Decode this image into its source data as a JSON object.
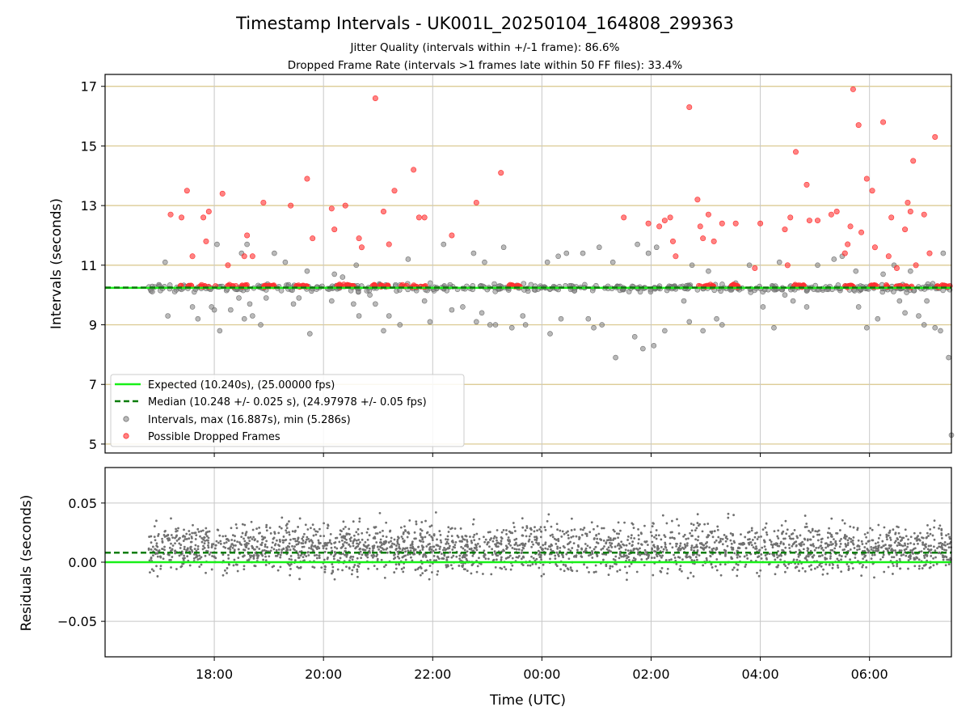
{
  "chart_data": [
    {
      "type": "scatter",
      "title": "Timestamp Intervals - UK001L_20250104_164808_299363",
      "subtitle_lines": [
        "Jitter Quality (intervals within +/-1 frame): 86.6%",
        "Dropped Frame Rate (intervals >1 frames late within 50 FF files): 33.4%"
      ],
      "ylabel": "Intervals (seconds)",
      "ylim": [
        4.7,
        17.4
      ],
      "yticks": [
        "5",
        "7",
        "9",
        "11",
        "13",
        "15",
        "17"
      ],
      "ytick_values": [
        5,
        7,
        9,
        11,
        13,
        15,
        17
      ],
      "x_time_range_hours": [
        16.0,
        31.5
      ],
      "x_data_start_hours": 16.8,
      "grid": "on",
      "horizontal_grid_color": "#d8c68a",
      "legend_placement": "lower-left",
      "legend": [
        {
          "label": "Expected (10.240s), (25.00000 fps)",
          "kind": "solid-line",
          "color": "#18f018"
        },
        {
          "label": "Median (10.248 +/- 0.025 s), (24.97978 +/- 0.05 fps)",
          "kind": "dashed-line",
          "color": "#0a7d0a"
        },
        {
          "label": "Intervals, max (16.887s), min (5.286s)",
          "kind": "marker",
          "color": "#808080"
        },
        {
          "label": "Possible Dropped Frames",
          "kind": "marker",
          "color": "#ff3030"
        }
      ],
      "series": [
        {
          "name": "Expected (10.240s), (25.00000 fps)",
          "type": "hline",
          "y": 10.24,
          "color": "#18f018"
        },
        {
          "name": "Median (10.248 +/- 0.025 s), (24.97978 +/- 0.05 fps)",
          "type": "hline",
          "y": 10.248,
          "color": "#0a7d0a",
          "style": "dashed"
        },
        {
          "name": "Intervals, max (16.887s), min (5.286s)",
          "color": "#808080",
          "band": {
            "center": 10.24,
            "halfwidth": 0.12,
            "count": 420
          },
          "outliers": [
            [
              17.1,
              11.1
            ],
            [
              17.15,
              9.3
            ],
            [
              17.6,
              9.6
            ],
            [
              17.7,
              9.2
            ],
            [
              17.95,
              9.6
            ],
            [
              18.0,
              9.5
            ],
            [
              18.05,
              11.7
            ],
            [
              18.1,
              8.8
            ],
            [
              18.3,
              9.5
            ],
            [
              18.45,
              9.9
            ],
            [
              18.5,
              11.4
            ],
            [
              18.55,
              9.2
            ],
            [
              18.6,
              11.7
            ],
            [
              18.65,
              9.7
            ],
            [
              18.7,
              9.3
            ],
            [
              18.85,
              9.0
            ],
            [
              18.95,
              9.9
            ],
            [
              19.1,
              11.4
            ],
            [
              19.3,
              11.1
            ],
            [
              19.45,
              9.7
            ],
            [
              19.55,
              9.9
            ],
            [
              19.7,
              10.8
            ],
            [
              19.75,
              8.7
            ],
            [
              20.15,
              9.8
            ],
            [
              20.2,
              10.7
            ],
            [
              20.35,
              10.6
            ],
            [
              20.55,
              9.7
            ],
            [
              20.6,
              11.0
            ],
            [
              20.65,
              9.3
            ],
            [
              20.85,
              10.0
            ],
            [
              20.95,
              9.7
            ],
            [
              21.1,
              8.8
            ],
            [
              21.2,
              9.3
            ],
            [
              21.4,
              9.0
            ],
            [
              21.55,
              11.2
            ],
            [
              21.85,
              9.8
            ],
            [
              21.95,
              9.1
            ],
            [
              22.2,
              11.7
            ],
            [
              22.35,
              9.5
            ],
            [
              22.55,
              9.6
            ],
            [
              22.75,
              11.4
            ],
            [
              22.8,
              9.1
            ],
            [
              22.9,
              9.4
            ],
            [
              22.95,
              11.1
            ],
            [
              23.05,
              9.0
            ],
            [
              23.15,
              9.0
            ],
            [
              23.3,
              11.6
            ],
            [
              23.45,
              8.9
            ],
            [
              23.65,
              9.3
            ],
            [
              23.7,
              9.0
            ],
            [
              24.1,
              11.1
            ],
            [
              24.15,
              8.7
            ],
            [
              24.3,
              11.3
            ],
            [
              24.35,
              9.2
            ],
            [
              24.45,
              11.4
            ],
            [
              24.75,
              11.4
            ],
            [
              24.85,
              9.2
            ],
            [
              24.95,
              8.9
            ],
            [
              25.05,
              11.6
            ],
            [
              25.1,
              9.0
            ],
            [
              25.3,
              11.1
            ],
            [
              25.35,
              7.9
            ],
            [
              25.7,
              8.6
            ],
            [
              25.75,
              11.7
            ],
            [
              25.85,
              8.2
            ],
            [
              25.95,
              11.4
            ],
            [
              26.05,
              8.3
            ],
            [
              26.1,
              11.6
            ],
            [
              26.25,
              8.8
            ],
            [
              26.45,
              10.2
            ],
            [
              26.6,
              9.8
            ],
            [
              26.7,
              9.1
            ],
            [
              26.75,
              11.0
            ],
            [
              26.95,
              8.8
            ],
            [
              27.05,
              10.8
            ],
            [
              27.2,
              9.2
            ],
            [
              27.3,
              9.0
            ],
            [
              27.55,
              10.4
            ],
            [
              27.8,
              11.0
            ],
            [
              28.05,
              9.6
            ],
            [
              28.25,
              8.9
            ],
            [
              28.35,
              11.1
            ],
            [
              28.45,
              10.0
            ],
            [
              28.6,
              9.8
            ],
            [
              28.85,
              9.6
            ],
            [
              29.05,
              11.0
            ],
            [
              29.35,
              11.2
            ],
            [
              29.5,
              11.3
            ],
            [
              29.75,
              10.8
            ],
            [
              29.8,
              9.6
            ],
            [
              29.95,
              8.9
            ],
            [
              30.15,
              9.2
            ],
            [
              30.25,
              10.7
            ],
            [
              30.45,
              11.0
            ],
            [
              30.55,
              9.8
            ],
            [
              30.65,
              9.4
            ],
            [
              30.75,
              10.8
            ],
            [
              30.9,
              9.3
            ],
            [
              31.0,
              9.0
            ],
            [
              31.05,
              9.8
            ],
            [
              31.2,
              8.9
            ],
            [
              31.3,
              8.8
            ],
            [
              31.35,
              11.4
            ],
            [
              31.45,
              7.9
            ],
            [
              31.5,
              5.3
            ]
          ]
        },
        {
          "name": "Possible Dropped Frames",
          "color": "#ff3030",
          "band": {
            "center": 10.3,
            "halfwidth": 0.04,
            "count": 200,
            "clusters": [
              [
                17.3,
                17.9
              ],
              [
                18.0,
                18.6
              ],
              [
                18.9,
                19.1
              ],
              [
                19.5,
                19.7
              ],
              [
                20.2,
                20.6
              ],
              [
                20.9,
                21.2
              ],
              [
                21.4,
                21.9
              ],
              [
                23.4,
                23.6
              ],
              [
                26.85,
                27.15
              ],
              [
                27.45,
                27.6
              ],
              [
                28.6,
                28.8
              ],
              [
                29.55,
                29.7
              ],
              [
                30.0,
                30.15
              ],
              [
                30.3,
                30.8
              ],
              [
                31.15,
                31.5
              ]
            ]
          },
          "outliers": [
            [
              17.2,
              12.7
            ],
            [
              17.4,
              12.6
            ],
            [
              17.5,
              13.5
            ],
            [
              17.6,
              11.3
            ],
            [
              17.8,
              12.6
            ],
            [
              17.85,
              11.8
            ],
            [
              17.9,
              12.8
            ],
            [
              18.15,
              13.4
            ],
            [
              18.25,
              11.0
            ],
            [
              18.55,
              11.3
            ],
            [
              18.6,
              12.0
            ],
            [
              18.7,
              11.3
            ],
            [
              18.9,
              13.1
            ],
            [
              19.4,
              13.0
            ],
            [
              19.7,
              13.9
            ],
            [
              19.8,
              11.9
            ],
            [
              20.15,
              12.9
            ],
            [
              20.2,
              12.2
            ],
            [
              20.4,
              13.0
            ],
            [
              20.65,
              11.9
            ],
            [
              20.7,
              11.6
            ],
            [
              20.95,
              16.6
            ],
            [
              21.1,
              12.8
            ],
            [
              21.2,
              11.7
            ],
            [
              21.3,
              13.5
            ],
            [
              21.65,
              14.2
            ],
            [
              21.75,
              12.6
            ],
            [
              21.85,
              12.6
            ],
            [
              22.35,
              12.0
            ],
            [
              22.8,
              13.1
            ],
            [
              23.25,
              14.1
            ],
            [
              25.5,
              12.6
            ],
            [
              25.95,
              12.4
            ],
            [
              26.15,
              12.3
            ],
            [
              26.25,
              12.5
            ],
            [
              26.35,
              12.6
            ],
            [
              26.4,
              11.8
            ],
            [
              26.45,
              11.3
            ],
            [
              26.7,
              16.3
            ],
            [
              26.85,
              13.2
            ],
            [
              26.9,
              12.3
            ],
            [
              26.95,
              11.9
            ],
            [
              27.05,
              12.7
            ],
            [
              27.15,
              11.8
            ],
            [
              27.3,
              12.4
            ],
            [
              27.55,
              12.4
            ],
            [
              27.9,
              10.9
            ],
            [
              28.0,
              12.4
            ],
            [
              28.45,
              12.2
            ],
            [
              28.5,
              11.0
            ],
            [
              28.55,
              12.6
            ],
            [
              28.65,
              14.8
            ],
            [
              28.85,
              13.7
            ],
            [
              28.9,
              12.5
            ],
            [
              29.05,
              12.5
            ],
            [
              29.3,
              12.7
            ],
            [
              29.4,
              12.8
            ],
            [
              29.55,
              11.4
            ],
            [
              29.6,
              11.7
            ],
            [
              29.65,
              12.3
            ],
            [
              29.7,
              16.9
            ],
            [
              29.8,
              15.7
            ],
            [
              29.85,
              12.1
            ],
            [
              29.95,
              13.9
            ],
            [
              30.05,
              13.5
            ],
            [
              30.1,
              11.6
            ],
            [
              30.25,
              15.8
            ],
            [
              30.35,
              11.3
            ],
            [
              30.4,
              12.6
            ],
            [
              30.5,
              10.9
            ],
            [
              30.65,
              12.2
            ],
            [
              30.7,
              13.1
            ],
            [
              30.75,
              12.8
            ],
            [
              30.8,
              14.5
            ],
            [
              30.85,
              11.0
            ],
            [
              31.0,
              12.7
            ],
            [
              31.1,
              11.4
            ],
            [
              31.2,
              15.3
            ]
          ]
        }
      ]
    },
    {
      "type": "scatter",
      "xlabel": "Time (UTC)",
      "ylabel": "Residuals (seconds)",
      "ylim": [
        -0.08,
        0.08
      ],
      "yticks": [
        "0.05",
        "0.00",
        "−0.05"
      ],
      "ytick_values": [
        0.05,
        0.0,
        -0.05
      ],
      "xticks": [
        "18:00",
        "20:00",
        "22:00",
        "00:00",
        "02:00",
        "04:00",
        "06:00"
      ],
      "xtick_hours": [
        18,
        20,
        22,
        24,
        26,
        28,
        30
      ],
      "x_time_range_hours": [
        16.0,
        31.5
      ],
      "grid": "on",
      "series": [
        {
          "name": "residuals",
          "color": "#707070",
          "center": 0.012,
          "spread": 0.02,
          "count": 2600,
          "x_range_hours": [
            16.8,
            31.5
          ]
        },
        {
          "name": "expected",
          "type": "hline",
          "y": 0.0,
          "color": "#18f018"
        },
        {
          "name": "median",
          "type": "hline",
          "y": 0.008,
          "color": "#0a7d0a",
          "style": "dashed"
        }
      ]
    }
  ]
}
